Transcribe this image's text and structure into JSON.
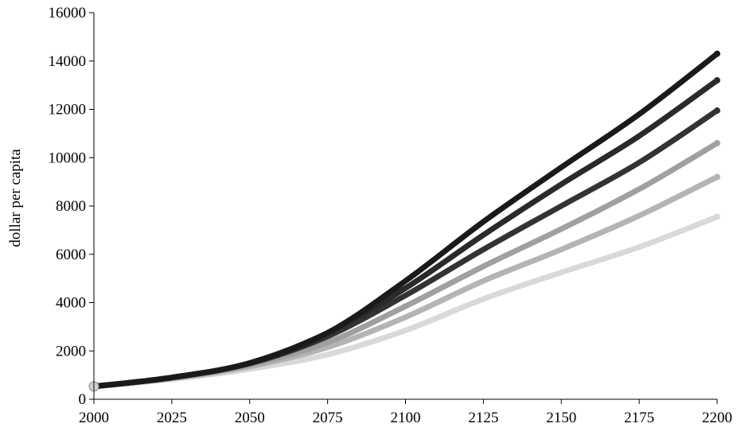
{
  "chart_data": {
    "type": "line",
    "title": "",
    "xlabel": "",
    "ylabel": "dollar per capita",
    "xlim": [
      2000,
      2200
    ],
    "ylim": [
      0,
      16000
    ],
    "x_ticks": [
      2000,
      2025,
      2050,
      2075,
      2100,
      2125,
      2150,
      2175,
      2200
    ],
    "y_ticks": [
      0,
      2000,
      4000,
      6000,
      8000,
      10000,
      12000,
      14000,
      16000
    ],
    "grid": false,
    "legend": "none",
    "x": [
      2000,
      2025,
      2050,
      2075,
      2100,
      2125,
      2150,
      2175,
      2200
    ],
    "series": [
      {
        "color": "#1a1a1a",
        "values": [
          530,
          900,
          1500,
          2750,
          4900,
          7350,
          9600,
          11800,
          14300
        ]
      },
      {
        "color": "#2a2a2a",
        "values": [
          530,
          900,
          1500,
          2750,
          4600,
          6800,
          8900,
          10900,
          13200
        ]
      },
      {
        "color": "#333333",
        "values": [
          530,
          900,
          1480,
          2600,
          4300,
          6200,
          8000,
          9800,
          11950
        ]
      },
      {
        "color": "#a0a0a0",
        "values": [
          530,
          880,
          1420,
          2350,
          3850,
          5500,
          7050,
          8700,
          10600
        ]
      },
      {
        "color": "#b4b4b4",
        "values": [
          530,
          860,
          1350,
          2150,
          3400,
          4900,
          6200,
          7600,
          9200
        ]
      },
      {
        "color": "#d9d9d9",
        "values": [
          530,
          830,
          1250,
          1850,
          2850,
          4150,
          5250,
          6300,
          7550
        ]
      }
    ]
  }
}
